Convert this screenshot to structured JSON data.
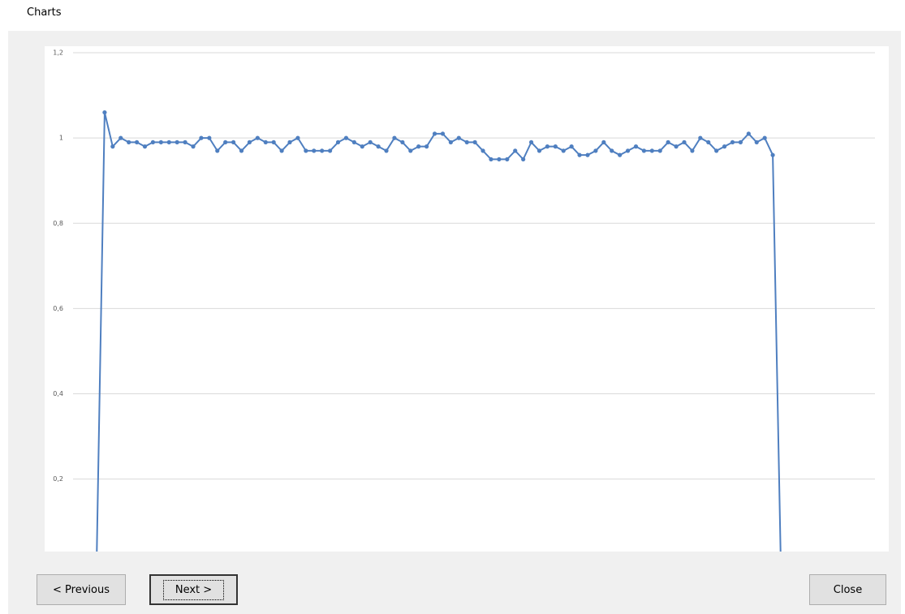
{
  "window": {
    "title": "Charts"
  },
  "buttons": {
    "previous": "< Previous",
    "next": "Next >",
    "close": "Close"
  },
  "chart_data": {
    "type": "line",
    "series": [
      {
        "color": "#4f7fc0",
        "values": [
          0,
          1.06,
          0.98,
          1.0,
          0.99,
          0.99,
          0.98,
          0.99,
          0.99,
          0.99,
          0.99,
          0.99,
          0.98,
          1.0,
          1.0,
          0.97,
          0.99,
          0.99,
          0.97,
          0.99,
          1.0,
          0.99,
          0.99,
          0.97,
          0.99,
          1.0,
          0.97,
          0.97,
          0.97,
          0.97,
          0.99,
          1.0,
          0.99,
          0.98,
          0.99,
          0.98,
          0.97,
          1.0,
          0.99,
          0.97,
          0.98,
          0.98,
          1.01,
          1.01,
          0.99,
          1.0,
          0.99,
          0.99,
          0.97,
          0.95,
          0.95,
          0.95,
          0.97,
          0.95,
          0.99,
          0.97,
          0.98,
          0.98,
          0.97,
          0.98,
          0.96,
          0.96,
          0.97,
          0.99,
          0.97,
          0.96,
          0.97,
          0.98,
          0.97,
          0.97,
          0.97,
          0.99,
          0.98,
          0.99,
          0.97,
          1.0,
          0.99,
          0.97,
          0.98,
          0.99,
          0.99,
          1.01,
          0.99,
          1.0,
          0.96,
          0
        ]
      }
    ],
    "ylim": [
      0.03,
      1.2
    ],
    "yticks": [
      {
        "value": 0.2,
        "label": "0,2"
      },
      {
        "value": 0.4,
        "label": "0,4"
      },
      {
        "value": 0.6,
        "label": "0,6"
      },
      {
        "value": 0.8,
        "label": "0,8"
      },
      1,
      {
        "value": 1.2,
        "label": "1,2"
      }
    ],
    "grid": true
  }
}
